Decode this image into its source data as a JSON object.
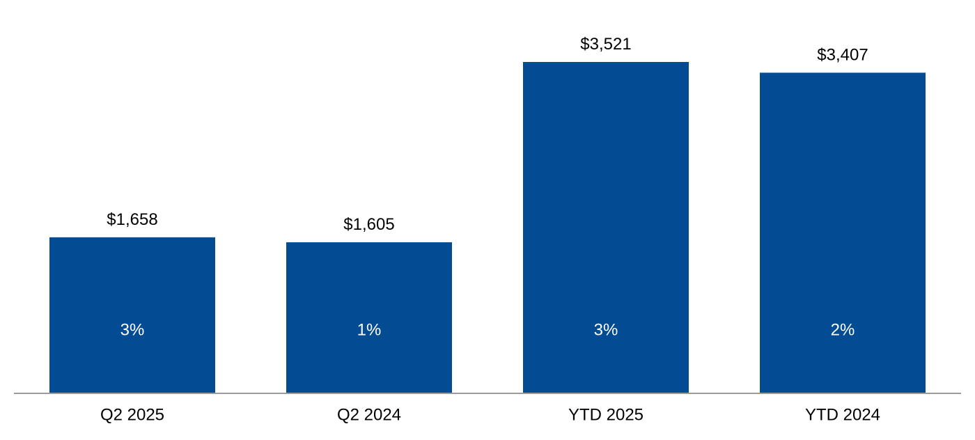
{
  "colors": {
    "bar": "#034C94",
    "axis": "#9B9B9B",
    "inner_label": "#FFFFFF"
  },
  "chart_data": {
    "type": "bar",
    "title": "",
    "xlabel": "",
    "ylabel": "",
    "ylim": [
      0,
      3750
    ],
    "grid": false,
    "legend": "none",
    "categories": [
      "Q2 2025",
      "Q2 2024",
      "YTD 2025",
      "YTD 2024"
    ],
    "values": [
      1658,
      1605,
      3521,
      3407
    ],
    "value_labels": [
      "$1,658",
      "$1,605",
      "$3,521",
      "$3,407"
    ],
    "inner_labels": [
      "3%",
      "1%",
      "3%",
      "2%"
    ]
  }
}
